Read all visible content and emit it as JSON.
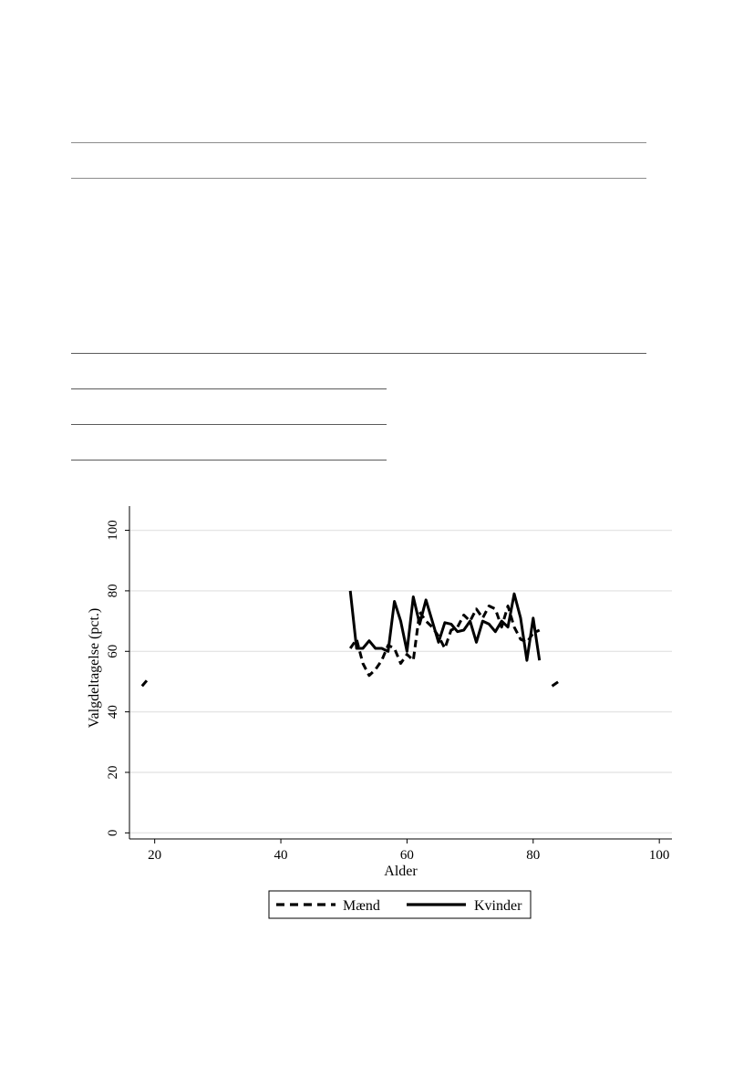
{
  "chart_data": {
    "type": "line",
    "title": "",
    "xlabel": "Alder",
    "ylabel": "Valgdeltagelse (pct.)",
    "xlim": [
      16,
      102
    ],
    "ylim": [
      -2,
      108
    ],
    "xticks": [
      20,
      40,
      60,
      80,
      100
    ],
    "yticks": [
      0,
      20,
      40,
      60,
      80,
      100
    ],
    "grid": "horizontal",
    "legend_position": "bottom",
    "series": [
      {
        "name": "Mænd",
        "style": "dashed",
        "color": "#000000",
        "segments": [
          [
            [
              18,
              48.5
            ],
            [
              19,
              51
            ]
          ],
          [
            [
              51,
              61
            ],
            [
              52,
              64
            ],
            [
              53,
              56
            ],
            [
              54,
              52
            ],
            [
              55,
              54
            ],
            [
              56,
              57
            ],
            [
              57,
              62
            ],
            [
              58,
              61
            ],
            [
              59,
              56
            ],
            [
              60,
              59
            ],
            [
              61,
              57
            ],
            [
              62,
              73
            ],
            [
              63,
              70
            ],
            [
              64,
              68
            ],
            [
              65,
              65
            ],
            [
              66,
              61
            ],
            [
              67,
              67
            ],
            [
              68,
              68
            ],
            [
              69,
              72
            ],
            [
              70,
              70
            ],
            [
              71,
              74
            ],
            [
              72,
              71
            ],
            [
              73,
              75
            ],
            [
              74,
              74
            ],
            [
              75,
              68
            ],
            [
              76,
              75
            ],
            [
              77,
              68
            ],
            [
              78,
              64
            ],
            [
              79,
              63
            ],
            [
              80,
              66
            ],
            [
              81,
              67
            ]
          ],
          [
            [
              83,
              48.5
            ],
            [
              84,
              50
            ]
          ]
        ]
      },
      {
        "name": "Kvinder",
        "style": "solid",
        "color": "#000000",
        "segments": [
          [
            [
              51,
              80
            ],
            [
              52,
              61
            ],
            [
              53,
              61
            ],
            [
              54,
              63.5
            ],
            [
              55,
              61
            ],
            [
              56,
              61
            ],
            [
              57,
              60
            ],
            [
              58,
              76.5
            ],
            [
              59,
              70
            ],
            [
              60,
              60
            ],
            [
              61,
              78
            ],
            [
              62,
              69
            ],
            [
              63,
              77
            ],
            [
              64,
              70
            ],
            [
              65,
              63
            ],
            [
              66,
              69.5
            ],
            [
              67,
              69
            ],
            [
              68,
              66.5
            ],
            [
              69,
              67
            ],
            [
              70,
              70
            ],
            [
              71,
              63
            ],
            [
              72,
              70
            ],
            [
              73,
              69
            ],
            [
              74,
              66.5
            ],
            [
              75,
              70
            ],
            [
              76,
              68
            ],
            [
              77,
              79
            ],
            [
              78,
              71
            ],
            [
              79,
              57
            ],
            [
              80,
              71
            ],
            [
              81,
              57
            ]
          ]
        ]
      }
    ]
  }
}
